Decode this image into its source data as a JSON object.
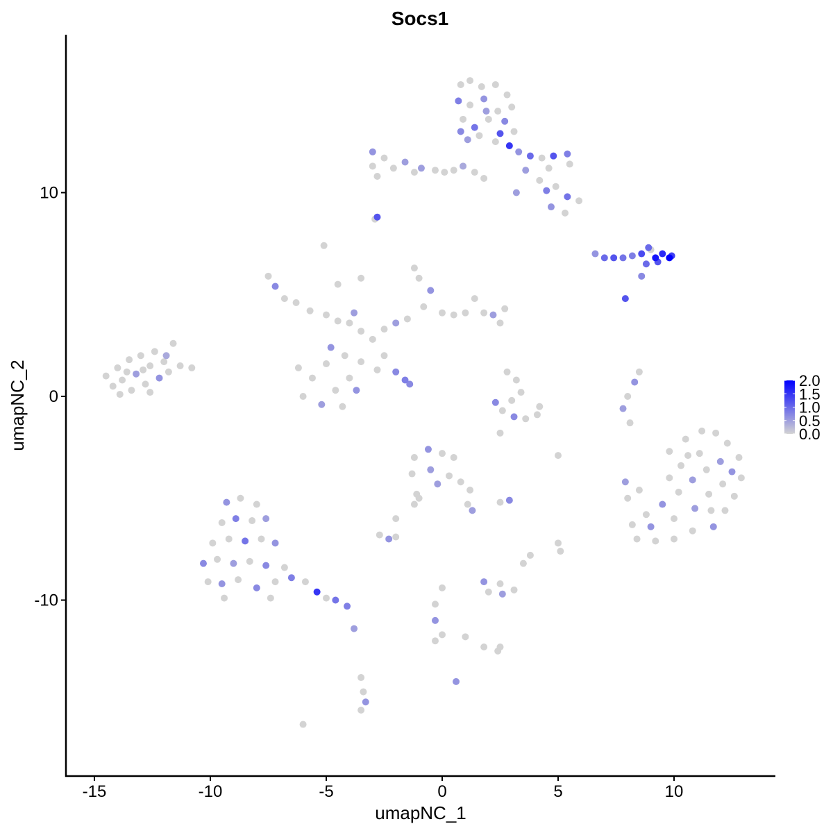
{
  "chart_data": {
    "type": "scatter",
    "title": "Socs1",
    "xlabel": "umapNC_1",
    "ylabel": "umapNC_2",
    "xlim": [
      -16.2,
      14.4
    ],
    "ylim": [
      -18.6,
      17.75
    ],
    "xticks": [
      -15,
      -10,
      -5,
      0,
      5,
      10
    ],
    "xtick_labels": [
      "-15",
      "-10",
      "-5",
      "0",
      "5",
      "10"
    ],
    "yticks": [
      -10,
      0,
      10
    ],
    "ytick_labels": [
      "-10",
      "0",
      "10"
    ],
    "grid": false,
    "legend": {
      "placement": "right",
      "type": "colorbar",
      "range": [
        0,
        2
      ],
      "ticks": [
        2.0,
        1.5,
        1.0,
        0.5,
        0.0
      ],
      "tick_labels": [
        "2.0",
        "1.5",
        "1.0",
        "0.5",
        "0.0"
      ],
      "low_color": "#D3D3D3",
      "high_color": "#0000FF"
    },
    "points_format": [
      "x",
      "y",
      "expression"
    ],
    "points": [
      [
        -14.5,
        1.0,
        0
      ],
      [
        -14.2,
        0.5,
        0
      ],
      [
        -14.0,
        1.4,
        0
      ],
      [
        -13.8,
        0.8,
        0
      ],
      [
        -13.5,
        1.8,
        0
      ],
      [
        -13.4,
        0.3,
        0
      ],
      [
        -13.2,
        1.1,
        0.5
      ],
      [
        -13.0,
        2.0,
        0
      ],
      [
        -12.8,
        0.6,
        0
      ],
      [
        -12.6,
        1.5,
        0
      ],
      [
        -12.4,
        2.2,
        0
      ],
      [
        -12.2,
        0.9,
        0.6
      ],
      [
        -12.0,
        1.7,
        0
      ],
      [
        -11.8,
        1.2,
        0
      ],
      [
        -11.6,
        2.6,
        0
      ],
      [
        -11.3,
        1.5,
        0
      ],
      [
        -10.8,
        1.4,
        0
      ],
      [
        -13.9,
        0.1,
        0
      ],
      [
        -12.9,
        1.3,
        0
      ],
      [
        -13.6,
        1.2,
        0
      ],
      [
        -12.6,
        0.2,
        0
      ],
      [
        -11.9,
        2.0,
        0.4
      ],
      [
        0.8,
        15.3,
        0
      ],
      [
        1.2,
        15.5,
        0
      ],
      [
        1.7,
        15.2,
        0
      ],
      [
        2.3,
        15.3,
        0
      ],
      [
        2.8,
        14.8,
        0
      ],
      [
        3.0,
        14.2,
        0
      ],
      [
        0.7,
        14.5,
        0.8
      ],
      [
        1.2,
        14.3,
        0
      ],
      [
        1.8,
        14.6,
        0.6
      ],
      [
        2.4,
        14.0,
        0
      ],
      [
        0.9,
        13.6,
        0
      ],
      [
        1.4,
        13.2,
        0.9
      ],
      [
        2.0,
        13.6,
        0
      ],
      [
        2.7,
        13.5,
        0.7
      ],
      [
        3.1,
        13.0,
        0
      ],
      [
        1.1,
        12.6,
        0.5
      ],
      [
        1.6,
        12.8,
        0
      ],
      [
        2.3,
        12.5,
        0
      ],
      [
        2.5,
        12.9,
        1.2
      ],
      [
        1.9,
        14.0,
        0.5
      ],
      [
        0.8,
        13.0,
        0.7
      ],
      [
        2.9,
        12.3,
        1.5
      ],
      [
        3.3,
        12.0,
        0.6
      ],
      [
        3.8,
        11.8,
        1.0
      ],
      [
        4.3,
        11.7,
        0
      ],
      [
        4.8,
        11.8,
        1.2
      ],
      [
        5.4,
        11.9,
        0.8
      ],
      [
        5.5,
        11.4,
        0
      ],
      [
        3.6,
        11.1,
        0.5
      ],
      [
        4.2,
        10.6,
        0
      ],
      [
        4.5,
        10.1,
        0.8
      ],
      [
        4.9,
        10.3,
        0
      ],
      [
        5.4,
        9.8,
        0.9
      ],
      [
        5.9,
        9.6,
        0
      ],
      [
        4.7,
        9.3,
        0.6
      ],
      [
        5.3,
        9.0,
        0
      ],
      [
        3.2,
        10.0,
        0.5
      ],
      [
        4.6,
        11.2,
        0
      ],
      [
        -3.0,
        12.0,
        0.6
      ],
      [
        -3.0,
        11.3,
        0
      ],
      [
        -2.8,
        10.8,
        0
      ],
      [
        -2.5,
        11.7,
        0
      ],
      [
        -2.1,
        11.2,
        0
      ],
      [
        -1.6,
        11.5,
        0.5
      ],
      [
        -1.2,
        11.0,
        0
      ],
      [
        -0.9,
        11.2,
        0.5
      ],
      [
        -0.3,
        11.1,
        0
      ],
      [
        0.1,
        11.0,
        0
      ],
      [
        0.5,
        11.1,
        0
      ],
      [
        0.9,
        11.3,
        0.4
      ],
      [
        1.4,
        11.0,
        0
      ],
      [
        1.8,
        10.7,
        0
      ],
      [
        -2.8,
        8.8,
        1.2
      ],
      [
        -2.9,
        8.7,
        0
      ],
      [
        6.6,
        7.0,
        0.6
      ],
      [
        7.0,
        6.8,
        1.0
      ],
      [
        7.4,
        6.8,
        1.2
      ],
      [
        7.8,
        6.8,
        0.9
      ],
      [
        8.2,
        6.9,
        0.8
      ],
      [
        8.6,
        7.0,
        1.3
      ],
      [
        8.9,
        7.3,
        1.0
      ],
      [
        9.2,
        6.8,
        1.8
      ],
      [
        9.5,
        7.0,
        1.6
      ],
      [
        9.8,
        6.8,
        2.0
      ],
      [
        9.9,
        6.9,
        1.4
      ],
      [
        9.3,
        6.6,
        1.2
      ],
      [
        8.8,
        6.5,
        1.0
      ],
      [
        8.6,
        5.9,
        0.7
      ],
      [
        7.9,
        4.8,
        1.2
      ],
      [
        9.0,
        7.2,
        0
      ],
      [
        9.8,
        -2.7,
        0
      ],
      [
        10.5,
        -2.1,
        0
      ],
      [
        11.2,
        -1.7,
        0
      ],
      [
        11.8,
        -1.8,
        0
      ],
      [
        12.3,
        -2.3,
        0
      ],
      [
        12.8,
        -3.0,
        0
      ],
      [
        12.9,
        -4.0,
        0
      ],
      [
        12.6,
        -4.9,
        0
      ],
      [
        12.2,
        -5.6,
        0
      ],
      [
        11.7,
        -6.4,
        0.6
      ],
      [
        10.8,
        -6.6,
        0
      ],
      [
        10.0,
        -7.0,
        0
      ],
      [
        9.2,
        -7.1,
        0
      ],
      [
        8.4,
        -7.0,
        0
      ],
      [
        8.2,
        -6.3,
        0
      ],
      [
        8.8,
        -5.8,
        0
      ],
      [
        9.5,
        -5.3,
        0.6
      ],
      [
        10.2,
        -4.7,
        0
      ],
      [
        10.8,
        -4.1,
        0.5
      ],
      [
        11.4,
        -3.6,
        0
      ],
      [
        12.0,
        -3.2,
        0.5
      ],
      [
        11.1,
        -2.8,
        0
      ],
      [
        10.3,
        -3.4,
        0
      ],
      [
        9.8,
        -4.0,
        0
      ],
      [
        11.5,
        -4.8,
        0
      ],
      [
        12.1,
        -4.3,
        0
      ],
      [
        10.9,
        -5.5,
        0.5
      ],
      [
        10.0,
        -6.0,
        0
      ],
      [
        9.0,
        -6.4,
        0.6
      ],
      [
        8.0,
        -5.0,
        0
      ],
      [
        7.9,
        -4.2,
        0.5
      ],
      [
        8.5,
        -4.6,
        0
      ],
      [
        11.6,
        -5.6,
        0
      ],
      [
        10.6,
        -2.9,
        0
      ],
      [
        12.5,
        -3.7,
        0.6
      ],
      [
        -9.3,
        -5.2,
        0.6
      ],
      [
        -8.7,
        -5.0,
        0
      ],
      [
        -8.0,
        -5.3,
        0
      ],
      [
        -9.5,
        -6.2,
        0
      ],
      [
        -8.9,
        -6.0,
        0.8
      ],
      [
        -8.2,
        -6.1,
        0
      ],
      [
        -7.6,
        -6.0,
        0.5
      ],
      [
        -9.9,
        -7.2,
        0
      ],
      [
        -9.2,
        -7.0,
        0
      ],
      [
        -8.5,
        -7.1,
        0.9
      ],
      [
        -7.8,
        -7.0,
        0
      ],
      [
        -7.2,
        -7.2,
        0.6
      ],
      [
        -10.3,
        -8.2,
        0.7
      ],
      [
        -9.7,
        -8.0,
        0
      ],
      [
        -9.0,
        -8.2,
        0.5
      ],
      [
        -8.3,
        -8.1,
        0
      ],
      [
        -7.6,
        -8.3,
        0.7
      ],
      [
        -6.8,
        -8.4,
        0
      ],
      [
        -10.1,
        -9.1,
        0
      ],
      [
        -9.5,
        -9.2,
        0.6
      ],
      [
        -8.8,
        -9.0,
        0
      ],
      [
        -8.0,
        -9.4,
        0.7
      ],
      [
        -7.2,
        -9.1,
        0
      ],
      [
        -6.5,
        -8.9,
        0.8
      ],
      [
        -5.9,
        -9.1,
        0
      ],
      [
        -5.4,
        -9.6,
        1.5
      ],
      [
        -5.0,
        -9.9,
        0
      ],
      [
        -4.6,
        -10.0,
        0.9
      ],
      [
        -4.1,
        -10.3,
        0.8
      ],
      [
        -9.4,
        -9.9,
        0
      ],
      [
        -7.4,
        -9.9,
        0
      ],
      [
        -3.8,
        -11.4,
        0.5
      ],
      [
        -7.5,
        5.9,
        0
      ],
      [
        -7.2,
        5.4,
        0.7
      ],
      [
        -6.8,
        4.8,
        0
      ],
      [
        -6.3,
        4.6,
        0
      ],
      [
        -5.7,
        4.2,
        0
      ],
      [
        -5.0,
        4.0,
        0
      ],
      [
        -4.5,
        3.7,
        0
      ],
      [
        -4.0,
        3.6,
        0
      ],
      [
        -3.5,
        3.2,
        0
      ],
      [
        -3.0,
        2.8,
        0
      ],
      [
        -2.5,
        3.3,
        0
      ],
      [
        -2.0,
        3.6,
        0.5
      ],
      [
        -1.5,
        3.8,
        0
      ],
      [
        -1.0,
        5.8,
        0
      ],
      [
        -1.2,
        6.3,
        0
      ],
      [
        -0.5,
        5.2,
        0.6
      ],
      [
        -0.8,
        4.4,
        0
      ],
      [
        0,
        4.1,
        0
      ],
      [
        0.5,
        4.0,
        0
      ],
      [
        1.0,
        4.1,
        0
      ],
      [
        1.4,
        4.8,
        0
      ],
      [
        1.8,
        4.1,
        0
      ],
      [
        2.2,
        4.0,
        0.5
      ],
      [
        2.5,
        3.6,
        0
      ],
      [
        2.7,
        4.3,
        0
      ],
      [
        -5.1,
        7.4,
        0
      ],
      [
        -4.5,
        5.5,
        0
      ],
      [
        -3.5,
        5.8,
        0
      ],
      [
        -3.8,
        4.1,
        0.5
      ],
      [
        -6.2,
        1.4,
        0
      ],
      [
        -5.6,
        0.9,
        0
      ],
      [
        -6.0,
        0.0,
        0
      ],
      [
        -5.2,
        -0.4,
        0.5
      ],
      [
        -4.6,
        0.3,
        0
      ],
      [
        -4.0,
        0.9,
        0
      ],
      [
        -3.7,
        0.3,
        0.6
      ],
      [
        -4.3,
        -0.5,
        0
      ],
      [
        -5.0,
        1.6,
        0
      ],
      [
        -4.8,
        2.4,
        0.6
      ],
      [
        -4.2,
        2.0,
        0
      ],
      [
        -3.5,
        1.7,
        0
      ],
      [
        -2.8,
        1.3,
        0
      ],
      [
        -2.0,
        1.2,
        0.7
      ],
      [
        -1.6,
        0.8,
        0.8
      ],
      [
        -1.4,
        0.6,
        0.7
      ],
      [
        -2.5,
        2.0,
        0
      ],
      [
        2.8,
        1.2,
        0
      ],
      [
        3.2,
        0.8,
        0
      ],
      [
        3.4,
        0.2,
        0
      ],
      [
        3.0,
        -0.2,
        0
      ],
      [
        2.3,
        -0.3,
        0.7
      ],
      [
        2.6,
        -0.7,
        0
      ],
      [
        3.1,
        -1.0,
        0.7
      ],
      [
        3.6,
        -1.1,
        0
      ],
      [
        4.1,
        -0.9,
        0
      ],
      [
        4.2,
        -0.5,
        0
      ],
      [
        8.5,
        1.2,
        0
      ],
      [
        8.3,
        0.7,
        0.6
      ],
      [
        8.0,
        0.0,
        0
      ],
      [
        7.8,
        -0.6,
        0.5
      ],
      [
        8.1,
        -1.3,
        0
      ],
      [
        -1.2,
        -3.0,
        0
      ],
      [
        -0.6,
        -2.6,
        0.6
      ],
      [
        0,
        -2.8,
        0
      ],
      [
        0.5,
        -3.0,
        0
      ],
      [
        -1.3,
        -3.8,
        0
      ],
      [
        -0.5,
        -3.6,
        0.5
      ],
      [
        0.3,
        -3.9,
        0
      ],
      [
        0.8,
        -4.2,
        0
      ],
      [
        1.2,
        -4.6,
        0
      ],
      [
        -0.2,
        -4.3,
        0.5
      ],
      [
        1.1,
        -5.3,
        0
      ],
      [
        1.3,
        -5.6,
        0.5
      ],
      [
        -1.1,
        -4.8,
        0
      ],
      [
        2.9,
        -5.1,
        0.7
      ],
      [
        2.5,
        -5.2,
        0
      ],
      [
        -1.2,
        -5.3,
        0
      ],
      [
        -2.0,
        -6.0,
        0
      ],
      [
        -2.7,
        -6.8,
        0
      ],
      [
        -2.3,
        -7.0,
        0.6
      ],
      [
        -2.0,
        -6.9,
        0
      ],
      [
        -1.0,
        -5.0,
        0
      ],
      [
        5.0,
        -7.2,
        0
      ],
      [
        5.1,
        -7.6,
        0
      ],
      [
        2.5,
        -9.2,
        0
      ],
      [
        2.0,
        -9.6,
        0
      ],
      [
        2.6,
        -9.7,
        0.5
      ],
      [
        3.1,
        -9.5,
        0
      ],
      [
        1.8,
        -9.1,
        0.6
      ],
      [
        0,
        -9.4,
        0
      ],
      [
        -0.3,
        -10.2,
        0
      ],
      [
        -0.3,
        -11.0,
        0.6
      ],
      [
        0,
        -11.7,
        0
      ],
      [
        -0.3,
        -12.0,
        0
      ],
      [
        1.0,
        -11.8,
        0
      ],
      [
        1.8,
        -12.3,
        0
      ],
      [
        2.4,
        -12.5,
        0
      ],
      [
        2.5,
        -12.3,
        0
      ],
      [
        0.6,
        -14.0,
        0.6
      ],
      [
        -3.5,
        -13.8,
        0
      ],
      [
        -3.4,
        -14.5,
        0
      ],
      [
        -3.3,
        -15.0,
        0.6
      ],
      [
        -3.5,
        -15.4,
        0
      ],
      [
        -6.0,
        -16.1,
        0
      ],
      [
        2.5,
        -1.8,
        0
      ],
      [
        3.8,
        -7.8,
        0
      ],
      [
        3.5,
        -8.2,
        0
      ],
      [
        5.0,
        -2.9,
        0
      ]
    ]
  }
}
